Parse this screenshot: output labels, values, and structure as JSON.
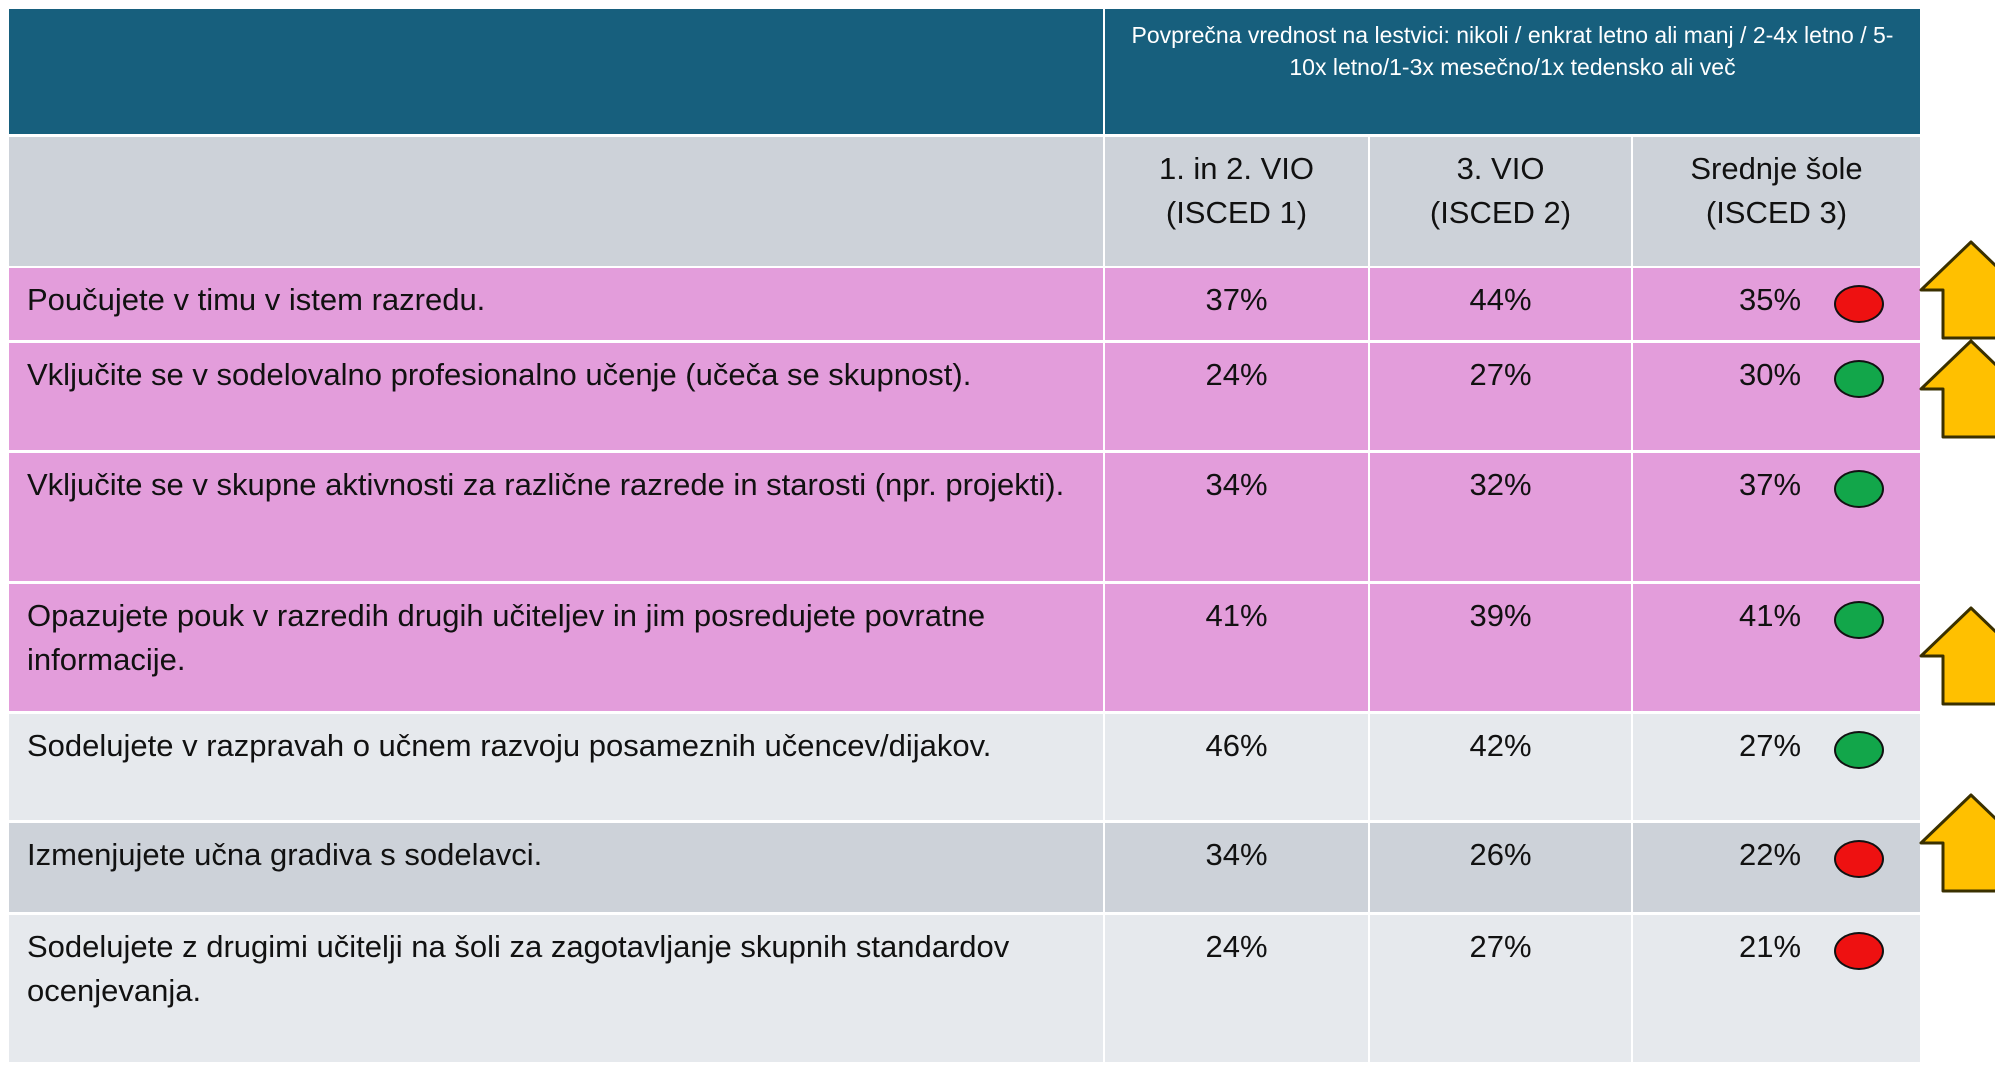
{
  "header": {
    "title": "Povprečna vrednost na lestvici: nikoli / enkrat letno ali manj / 2-4x letno / 5-10x letno/1-3x mesečno/1x tedensko ali več"
  },
  "columns": [
    [
      "1. in 2. VIO",
      "(ISCED 1)"
    ],
    [
      "3. VIO",
      "(ISCED 2)"
    ],
    [
      "Srednje šole",
      "(ISCED 3)"
    ]
  ],
  "rows": [
    {
      "label": "Poučujete v timu v istem razredu.",
      "values": [
        "37%",
        "44%",
        "35%"
      ],
      "indicator": "#ee1111",
      "fill": "#e39ddb"
    },
    {
      "label": "Vključite se v sodelovalno profesionalno učenje (učeča se skupnost).",
      "values": [
        "24%",
        "27%",
        "30%"
      ],
      "indicator": "#12a64a",
      "fill": "#e39ddb"
    },
    {
      "label": "Vključite se v skupne aktivnosti za različne razrede in starosti (npr. projekti).",
      "values": [
        "34%",
        "32%",
        "37%"
      ],
      "indicator": "#12a64a",
      "fill": "#e39ddb"
    },
    {
      "label": "Opazujete pouk v razredih drugih učiteljev in jim posredujete povratne informacije.",
      "values": [
        "41%",
        "39%",
        "41%"
      ],
      "indicator": "#12a64a",
      "fill": "#e39ddb"
    },
    {
      "label": "Sodelujete v razpravah o učnem razvoju posameznih učencev/dijakov.",
      "values": [
        "46%",
        "42%",
        "27%"
      ],
      "indicator": "#12a64a",
      "fill": "#e6e9ed"
    },
    {
      "label": "Izmenjujete učna gradiva s sodelavci.",
      "values": [
        "34%",
        "26%",
        "22%"
      ],
      "indicator": "#ee1111",
      "fill": "#cdd2d9"
    },
    {
      "label": "Sodelujete z drugimi učitelji na šoli za zagotavljanje skupnih standardov ocenjevanja.",
      "values": [
        "24%",
        "27%",
        "21%"
      ],
      "indicator": "#ee1111",
      "fill": "#e6e9ed"
    }
  ]
}
